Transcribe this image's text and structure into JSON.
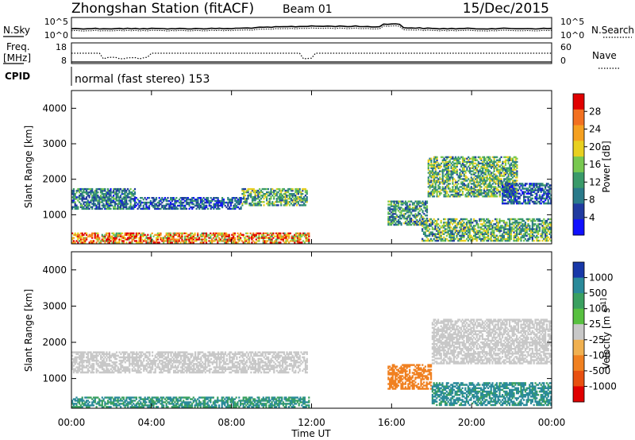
{
  "header": {
    "station": "Zhongshan Station (fitACF)",
    "beam": "Beam 01",
    "date": "15/Dec/2015"
  },
  "top_panels": {
    "nsky_label": "N.Sky",
    "nsky_ticks": [
      "10^5",
      "10^0"
    ],
    "nsearch_label": "N.Search",
    "nsearch_ticks": [
      "10^5",
      "10^0"
    ],
    "freq_label_1": "Freq.",
    "freq_label_2": "[MHz]",
    "freq_ticks": [
      "18",
      "8"
    ],
    "nave_label": "Nave",
    "nave_ticks": [
      "60",
      "0"
    ],
    "cpid_label": "CPID",
    "cpid_value": "normal (fast stereo) 153"
  },
  "chart_data": [
    {
      "type": "heatmap",
      "panel": "power",
      "title": "",
      "xlabel": "Time UT",
      "ylabel": "Slant Range [km]",
      "xlim": [
        0,
        24
      ],
      "ylim": [
        180,
        4500
      ],
      "x_ticks": [
        "00:00",
        "04:00",
        "08:00",
        "12:00",
        "16:00",
        "20:00",
        "00:00"
      ],
      "y_ticks": [
        "1000",
        "2000",
        "3000",
        "4000"
      ],
      "colorbar_label": "Power [dB]",
      "colorbar_ticks": [
        "28",
        "24",
        "20",
        "16",
        "12",
        "8",
        "4"
      ],
      "colorbar_colors": [
        "#e00000",
        "#f27020",
        "#f5a020",
        "#e8d020",
        "#78c850",
        "#3a9a6a",
        "#2a7a8a",
        "#203aa0",
        "#1010ff"
      ],
      "echo_regions": [
        {
          "t0": 0.0,
          "t1": 11.9,
          "r0": 200,
          "r1": 500,
          "level": 24
        },
        {
          "t0": 0.0,
          "t1": 3.2,
          "r0": 1150,
          "r1": 1750,
          "level": 10
        },
        {
          "t0": 3.2,
          "t1": 8.5,
          "r0": 1150,
          "r1": 1500,
          "level": 8
        },
        {
          "t0": 8.5,
          "t1": 11.8,
          "r0": 1250,
          "r1": 1750,
          "level": 14
        },
        {
          "t0": 15.8,
          "t1": 17.8,
          "r0": 700,
          "r1": 1400,
          "level": 12
        },
        {
          "t0": 17.8,
          "t1": 22.3,
          "r0": 1500,
          "r1": 2650,
          "level": 14
        },
        {
          "t0": 17.5,
          "t1": 24.0,
          "r0": 250,
          "r1": 900,
          "level": 14
        },
        {
          "t0": 21.5,
          "t1": 24.0,
          "r0": 1300,
          "r1": 1900,
          "level": 8
        }
      ]
    },
    {
      "type": "heatmap",
      "panel": "velocity",
      "title": "",
      "xlabel": "Time UT",
      "ylabel": "Slant Range [km]",
      "xlim": [
        0,
        24
      ],
      "ylim": [
        180,
        4500
      ],
      "x_ticks": [
        "00:00",
        "04:00",
        "08:00",
        "12:00",
        "16:00",
        "20:00",
        "00:00"
      ],
      "y_ticks": [
        "1000",
        "2000",
        "3000",
        "4000"
      ],
      "colorbar_label": "Velocity [m s^-1]",
      "colorbar_ticks": [
        "1000",
        "500",
        "100",
        "25",
        "-25",
        "-100",
        "-500",
        "-1000"
      ],
      "colorbar_colors": [
        "#1838a8",
        "#2a8a9a",
        "#3aa060",
        "#58c040",
        "#c8c8c8",
        "#f0b050",
        "#f08020",
        "#e85010",
        "#e00000"
      ],
      "echo_regions": [
        {
          "t0": 0.0,
          "t1": 11.9,
          "r0": 200,
          "r1": 500,
          "level": 100
        },
        {
          "t0": 0.0,
          "t1": 11.8,
          "r0": 1150,
          "r1": 1750,
          "level": 0
        },
        {
          "t0": 15.8,
          "t1": 18.0,
          "r0": 700,
          "r1": 1400,
          "level": -200
        },
        {
          "t0": 18.0,
          "t1": 24.0,
          "r0": 1400,
          "r1": 2650,
          "level": 0
        },
        {
          "t0": 18.0,
          "t1": 24.0,
          "r0": 250,
          "r1": 900,
          "level": 120
        }
      ]
    }
  ]
}
